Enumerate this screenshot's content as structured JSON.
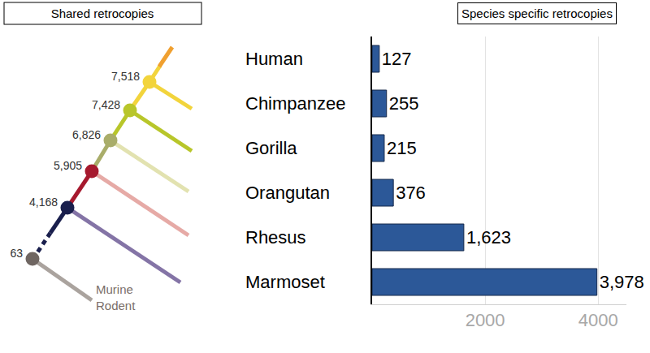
{
  "chart_data": {
    "type": "bar",
    "title": "Species specific retrocopies",
    "orientation": "horizontal",
    "categories": [
      "Human",
      "Chimpanzee",
      "Gorilla",
      "Orangutan",
      "Rhesus",
      "Marmoset"
    ],
    "values": [
      127,
      255,
      215,
      376,
      1623,
      3978
    ],
    "value_labels": [
      "127",
      "255",
      "215",
      "376",
      "1,623",
      "3,978"
    ],
    "data_labels": true,
    "color": "#2c5898",
    "xlim": [
      0,
      4500
    ],
    "xticks": [
      2000,
      4000
    ],
    "grid": true
  },
  "tree": {
    "title": "Shared retrocopies",
    "nodes": [
      "7,518",
      "7,428",
      "6,826",
      "5,905",
      "4,168",
      "63"
    ],
    "outgroup": "Murine Rodent"
  }
}
